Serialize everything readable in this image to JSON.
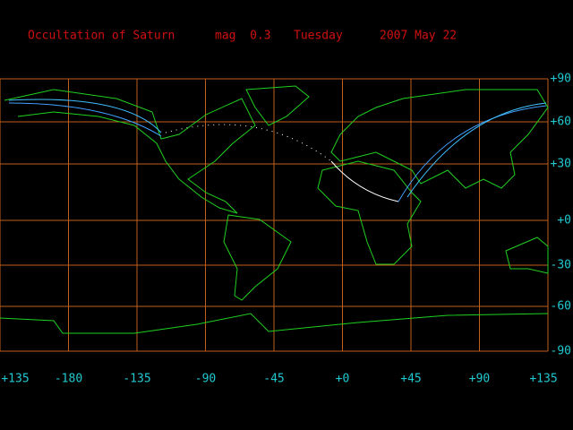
{
  "title": {
    "object": "Occultation of Saturn",
    "magnitude": "mag  0.3",
    "weekday": "Tuesday",
    "date": "2007 May 22"
  },
  "axes": {
    "xticks": [
      {
        "value": 135,
        "label": "+135"
      },
      -180,
      -135,
      -90,
      -45,
      {
        "value": 0,
        "label": "+0"
      },
      {
        "value": 45,
        "label": "+45"
      },
      {
        "value": 90,
        "label": "+90"
      },
      {
        "value": 135,
        "label": "+135"
      }
    ],
    "yticks": [
      {
        "value": 90,
        "label": "+90"
      },
      {
        "value": 60,
        "label": "+60"
      },
      {
        "value": 30,
        "label": "+30"
      },
      {
        "value": 0,
        "label": "+0"
      },
      -30,
      -60,
      -90
    ]
  }
}
